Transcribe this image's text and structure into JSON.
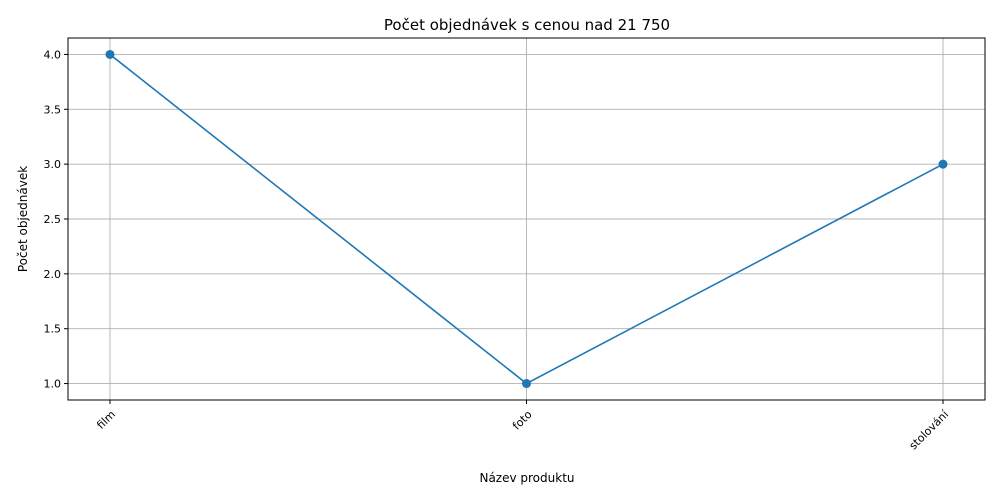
{
  "chart_data": {
    "type": "line",
    "title": "Počet objednávek s cenou nad 21 750",
    "xlabel": "Název produktu",
    "ylabel": "Počet objednávek",
    "categories": [
      "film",
      "foto",
      "stolování"
    ],
    "series": [
      {
        "values": [
          4,
          1,
          3
        ]
      }
    ],
    "ylim": [
      0.85,
      4.15
    ],
    "yticks": [
      "1.0",
      "1.5",
      "2.0",
      "2.5",
      "3.0",
      "3.5",
      "4.0"
    ],
    "grid": true,
    "marker": "circle",
    "colors": {
      "series": "#1f77b4"
    }
  }
}
